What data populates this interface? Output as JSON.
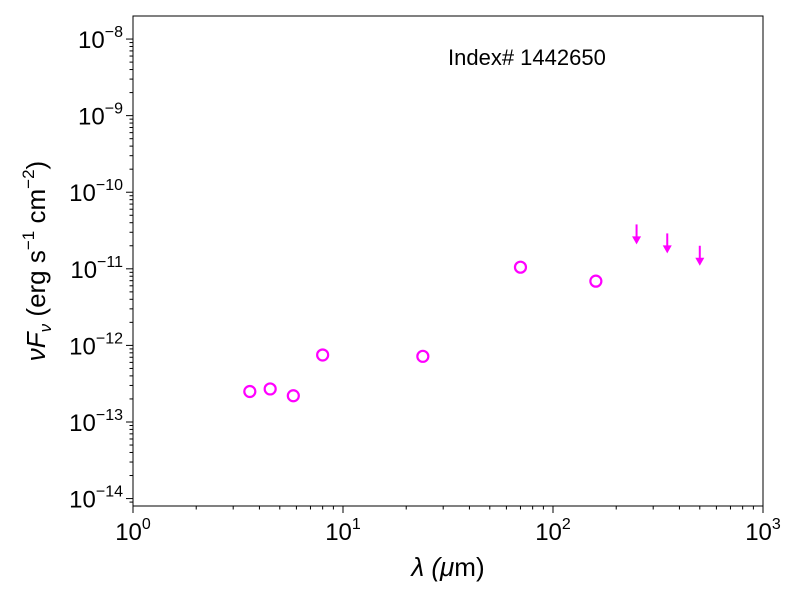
{
  "chart_data": {
    "type": "scatter",
    "title": "",
    "xlabel": {
      "prefix": "λ (",
      "mu": "μ",
      "suffix": "m)"
    },
    "ylabel": {
      "nu": "ν",
      "F": "F",
      "sub": "ν",
      "open": " (erg s",
      "exp1": "−1",
      "cm": " cm",
      "exp2": "−2",
      "close": ")"
    },
    "xscale": "log",
    "yscale": "log",
    "xlim": [
      1,
      1000
    ],
    "ylim": [
      8e-15,
      2e-08
    ],
    "x_ticks": [
      {
        "value": 1,
        "base": "10",
        "exp": "0"
      },
      {
        "value": 10,
        "base": "10",
        "exp": "1"
      },
      {
        "value": 100,
        "base": "10",
        "exp": "2"
      },
      {
        "value": 1000,
        "base": "10",
        "exp": "3"
      }
    ],
    "y_ticks": [
      {
        "value": 1e-14,
        "base": "10",
        "exp": "−14"
      },
      {
        "value": 1e-13,
        "base": "10",
        "exp": "−13"
      },
      {
        "value": 1e-12,
        "base": "10",
        "exp": "−12"
      },
      {
        "value": 1e-11,
        "base": "10",
        "exp": "−11"
      },
      {
        "value": 1e-10,
        "base": "10",
        "exp": "−10"
      },
      {
        "value": 1e-09,
        "base": "10",
        "exp": "−9"
      },
      {
        "value": 1e-08,
        "base": "10",
        "exp": "−8"
      }
    ],
    "annotation": "Index# 1442650",
    "marker_color": "#ff00ff",
    "grid": false,
    "detections": [
      {
        "x": 3.6,
        "y": 2.5e-13
      },
      {
        "x": 4.5,
        "y": 2.7e-13
      },
      {
        "x": 5.8,
        "y": 2.2e-13
      },
      {
        "x": 8.0,
        "y": 7.5e-13
      },
      {
        "x": 24,
        "y": 7.2e-13
      },
      {
        "x": 70,
        "y": 1.05e-11
      },
      {
        "x": 160,
        "y": 6.9e-12
      }
    ],
    "upper_limits": [
      {
        "x": 250,
        "y": 3.8e-11
      },
      {
        "x": 350,
        "y": 2.9e-11
      },
      {
        "x": 500,
        "y": 2e-11
      }
    ]
  }
}
